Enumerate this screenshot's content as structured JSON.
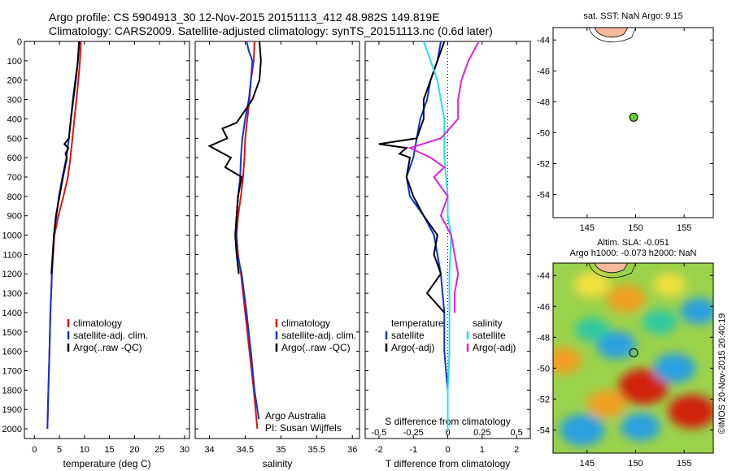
{
  "header": {
    "title_line1": "Argo profile: CS 5904913_30 12-Nov-2015 20151113_412 48.982S 149.819E",
    "title_line2": "Climatology: CARS2009. Satellite-adjusted climatology: synTS_20151113.nc (0.6d later)"
  },
  "colors": {
    "climatology": "#e01010",
    "satellite": "#1030e0",
    "argo": "#000000",
    "salinity_sat": "#20e0f0",
    "salinity_argo": "#e020e0",
    "argo_marker": "#66cc33",
    "land": "#f5b99a"
  },
  "labels": {
    "argo_australia": "Argo Australia",
    "pi": "PI: Susan Wijffels",
    "credit": "©IMOS 20-Nov-2015 20:40:19"
  },
  "chart_data": [
    {
      "id": "temperature",
      "type": "line",
      "xlabel": "temperature (deg C)",
      "xticks": [
        "0",
        "5",
        "10",
        "15",
        "20",
        "25",
        "30"
      ],
      "xtick_values": [
        0,
        5,
        10,
        15,
        20,
        25,
        30
      ],
      "xlim": [
        -2,
        31
      ],
      "ylim": [
        2050,
        0
      ],
      "yticks": [
        0,
        100,
        200,
        300,
        400,
        500,
        600,
        700,
        800,
        900,
        1000,
        1100,
        1200,
        1300,
        1400,
        1500,
        1600,
        1700,
        1800,
        1900,
        2000
      ],
      "legend": [
        "climatology",
        "satellite-adj. clim.",
        "Argo(..raw -QC)"
      ],
      "series": [
        {
          "key": "climatology",
          "depth": [
            0,
            100,
            200,
            300,
            400,
            500,
            600,
            700,
            800,
            900,
            1000,
            1200,
            1400,
            1600,
            1800,
            2000
          ],
          "values": [
            9.3,
            9.1,
            8.8,
            8.4,
            8.0,
            7.6,
            7.2,
            6.7,
            5.8,
            4.8,
            4.0,
            3.5,
            3.2,
            3.0,
            2.8,
            2.6
          ]
        },
        {
          "key": "satellite",
          "depth": [
            0,
            100,
            200,
            300,
            400,
            500,
            600,
            700,
            800,
            900,
            1000,
            1200,
            1400,
            1600,
            1800,
            2000
          ],
          "values": [
            9.0,
            8.7,
            8.3,
            7.8,
            7.3,
            6.9,
            6.4,
            5.6,
            4.9,
            4.4,
            3.9,
            3.5,
            3.2,
            3.0,
            2.8,
            2.6
          ]
        },
        {
          "key": "argo",
          "depth": [
            0,
            100,
            200,
            300,
            400,
            500,
            530,
            550,
            580,
            600,
            700,
            800,
            900,
            1000,
            1200
          ],
          "values": [
            8.9,
            8.7,
            8.2,
            7.7,
            7.3,
            6.9,
            6.0,
            6.8,
            6.2,
            6.5,
            5.7,
            5.0,
            4.3,
            3.9,
            3.4
          ]
        }
      ]
    },
    {
      "id": "salinity",
      "type": "line",
      "xlabel": "salinity",
      "xticks": [
        "34",
        "34.5",
        "35",
        "35.5",
        "36"
      ],
      "xtick_values": [
        34,
        34.5,
        35,
        35.5,
        36
      ],
      "xlim": [
        33.8,
        36.1
      ],
      "ylim": [
        2050,
        0
      ],
      "legend": [
        "climatology",
        "satellite-adj. clim.",
        "Argo(..raw -QC)"
      ],
      "series": [
        {
          "key": "climatology",
          "depth": [
            0,
            100,
            200,
            300,
            400,
            500,
            600,
            700,
            800,
            900,
            1000,
            1100,
            1200,
            1400,
            1600,
            1800,
            2000
          ],
          "values": [
            34.63,
            34.62,
            34.58,
            34.56,
            34.53,
            34.5,
            34.49,
            34.47,
            34.44,
            34.4,
            34.38,
            34.4,
            34.44,
            34.5,
            34.56,
            34.62,
            34.67
          ]
        },
        {
          "key": "satellite",
          "depth": [
            0,
            50,
            100,
            200,
            300,
            400,
            500,
            600,
            700,
            800,
            900,
            1000,
            1100,
            1200,
            1400,
            1600,
            1800,
            1950
          ],
          "values": [
            34.52,
            34.55,
            34.6,
            34.58,
            34.55,
            34.5,
            34.46,
            34.44,
            34.43,
            34.4,
            34.38,
            34.37,
            34.39,
            34.45,
            34.52,
            34.58,
            34.63,
            34.69
          ]
        },
        {
          "key": "argo",
          "depth": [
            0,
            100,
            200,
            300,
            420,
            450,
            500,
            540,
            560,
            600,
            650,
            700,
            800,
            900,
            1000,
            1100,
            1200
          ],
          "values": [
            34.7,
            34.72,
            34.7,
            34.6,
            34.38,
            34.18,
            34.25,
            34.0,
            34.1,
            34.3,
            34.22,
            34.45,
            34.4,
            34.38,
            34.36,
            34.38,
            34.41
          ]
        }
      ]
    },
    {
      "id": "difference",
      "type": "line",
      "xlabel": "T difference from climatology",
      "xlabel_top": "S difference from climatology",
      "xticks": [
        "-2",
        "-1",
        "0",
        "1",
        "2"
      ],
      "xtick_values": [
        -2,
        -1,
        0,
        1,
        2
      ],
      "xticks_top": [
        "-0.5",
        "-0.25",
        "0",
        "0.25",
        "0.5"
      ],
      "xtick_top_values": [
        -2,
        -1,
        0,
        1,
        2
      ],
      "xlim": [
        -2.4,
        2.4
      ],
      "ylim": [
        2050,
        0
      ],
      "legend_temperature_title": "temperature",
      "legend_salinity_title": "salinity",
      "legend_temperature": [
        "satellite",
        "Argo(-adj)"
      ],
      "legend_salinity": [
        "satellite",
        "Argo(-adj)"
      ],
      "series": [
        {
          "key": "t_satellite",
          "depth": [
            0,
            100,
            200,
            300,
            400,
            500,
            600,
            700,
            800,
            900,
            1000,
            1200,
            1400,
            1600,
            1800,
            2000
          ],
          "values": [
            -0.2,
            -0.3,
            -0.5,
            -0.6,
            -0.8,
            -0.9,
            -1.0,
            -1.2,
            -1.1,
            -0.7,
            -0.4,
            -0.2,
            -0.1,
            -0.1,
            0.0,
            0.0
          ]
        },
        {
          "key": "t_argo",
          "depth": [
            0,
            100,
            200,
            300,
            400,
            500,
            530,
            550,
            580,
            600,
            700,
            800,
            900,
            1000,
            1100,
            1200,
            1300,
            1400
          ],
          "values": [
            -0.1,
            -0.3,
            -0.5,
            -0.7,
            -0.7,
            -0.9,
            -2.0,
            -1.2,
            -1.4,
            -1.1,
            -1.2,
            -1.0,
            -0.7,
            -0.3,
            -0.4,
            -0.2,
            -0.6,
            -0.1
          ]
        },
        {
          "key": "s_satellite",
          "depth": [
            0,
            100,
            200,
            300,
            400,
            500,
            600,
            700,
            800,
            900,
            1000,
            1200,
            1400,
            1600,
            1800,
            2000
          ],
          "values": [
            -0.7,
            -0.5,
            -0.3,
            -0.2,
            -0.1,
            -0.1,
            -0.1,
            -0.05,
            0.0,
            0.0,
            0.1,
            0.05,
            0.05,
            0.05,
            0.0,
            0.0
          ]
        },
        {
          "key": "s_argo",
          "depth": [
            0,
            100,
            200,
            300,
            400,
            500,
            550,
            600,
            650,
            700,
            800,
            900,
            1000,
            1100,
            1200,
            1300,
            1400
          ],
          "values": [
            0.9,
            0.6,
            0.4,
            0.3,
            0.3,
            -0.2,
            -1.1,
            -0.5,
            -0.1,
            -0.4,
            0.0,
            -0.2,
            0.1,
            0.2,
            0.3,
            0.2,
            0.2
          ]
        }
      ]
    },
    {
      "id": "sst_map",
      "type": "scatter",
      "title": "sat. SST: NaN Argo: 9.15",
      "xticks": [
        "145",
        "150",
        "155"
      ],
      "xtick_values": [
        145,
        150,
        155
      ],
      "yticks": [
        "-44",
        "-46",
        "-48",
        "-50",
        "-52",
        "-54"
      ],
      "ytick_values": [
        -44,
        -46,
        -48,
        -50,
        -52,
        -54
      ],
      "xlim": [
        141.5,
        158
      ],
      "ylim": [
        -55.5,
        -43.2
      ],
      "points": [
        {
          "lon": 149.8,
          "lat": -49.0
        }
      ]
    },
    {
      "id": "sla_map",
      "type": "heatmap",
      "title_line1": "Altim. SLA: -0.051",
      "title_line2": "Argo h1000: -0.073 h2000: NaN",
      "xticks": [
        "145",
        "150",
        "155"
      ],
      "xtick_values": [
        145,
        150,
        155
      ],
      "yticks": [
        "-44",
        "-46",
        "-48",
        "-50",
        "-52",
        "-54"
      ],
      "ytick_values": [
        -44,
        -46,
        -48,
        -50,
        -52,
        -54
      ],
      "xlim": [
        141.5,
        158
      ],
      "ylim": [
        -55.5,
        -43.2
      ],
      "points": [
        {
          "lon": 149.8,
          "lat": -49.0
        }
      ],
      "blobs": [
        {
          "lon": 150.8,
          "lat": -51.2,
          "level": 1.0
        },
        {
          "lon": 155.8,
          "lat": -52.8,
          "level": 0.9
        },
        {
          "lon": 147.0,
          "lat": -52.3,
          "level": 0.6
        },
        {
          "lon": 145.5,
          "lat": -44.6,
          "level": 0.5
        },
        {
          "lon": 149.0,
          "lat": -45.5,
          "level": 0.6
        },
        {
          "lon": 153.5,
          "lat": -44.6,
          "level": 0.35
        },
        {
          "lon": 142.5,
          "lat": -49.5,
          "level": 0.55
        },
        {
          "lon": 148.0,
          "lat": -48.5,
          "level": -0.6
        },
        {
          "lon": 154.0,
          "lat": -50.0,
          "level": -0.7
        },
        {
          "lon": 144.5,
          "lat": -54.0,
          "level": -0.8
        },
        {
          "lon": 152.5,
          "lat": -47.0,
          "level": -0.45
        },
        {
          "lon": 150.5,
          "lat": -53.8,
          "level": -0.6
        },
        {
          "lon": 145.5,
          "lat": -47.5,
          "level": -0.4
        },
        {
          "lon": 156.5,
          "lat": -46.3,
          "level": -0.5
        }
      ]
    }
  ]
}
